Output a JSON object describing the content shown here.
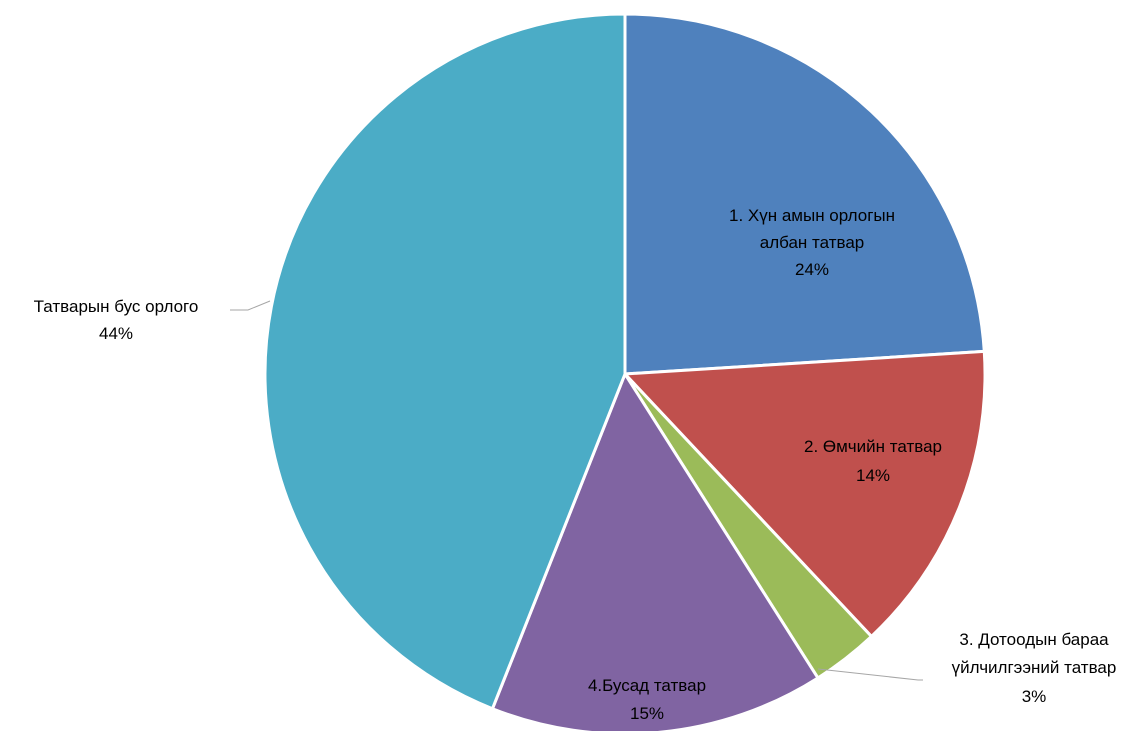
{
  "chart_data": {
    "type": "pie",
    "slices": [
      {
        "name_lines": [
          "1. Хүн амын орлогын",
          "албан татвар"
        ],
        "value": 24,
        "pct_text": "24%",
        "color": "#4f81bd"
      },
      {
        "name_lines": [
          "2. Өмчийн татвар"
        ],
        "value": 14,
        "pct_text": "14%",
        "color": "#c0504d"
      },
      {
        "name_lines": [
          "3. Дотоодын бараа",
          "үйлчилгээний татвар"
        ],
        "value": 3,
        "pct_text": "3%",
        "color": "#9bbb59"
      },
      {
        "name_lines": [
          "4.Бусад татвар"
        ],
        "value": 15,
        "pct_text": "15%",
        "color": "#8064a2"
      },
      {
        "name_lines": [
          "Татварын бус орлого"
        ],
        "value": 44,
        "pct_text": "44%",
        "color": "#4bacc6"
      }
    ],
    "legend": "none"
  }
}
